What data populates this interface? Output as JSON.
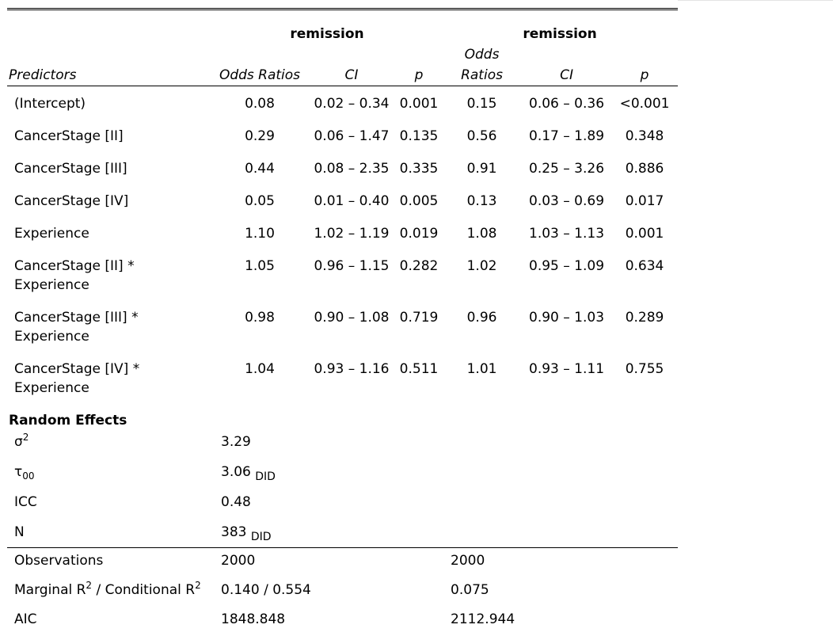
{
  "models": [
    {
      "dv": "remission"
    },
    {
      "dv": "remission"
    }
  ],
  "columns": {
    "predictors": "Predictors",
    "or": "Odds Ratios",
    "ci": "CI",
    "p": "p"
  },
  "rows": [
    {
      "label": "(Intercept)",
      "m1": {
        "or": "0.08",
        "ci": "0.02 – 0.34",
        "p": "0.001",
        "sig": true
      },
      "m2": {
        "or": "0.15",
        "ci": "0.06 – 0.36",
        "p": "<0.001",
        "sig": true
      }
    },
    {
      "label": "CancerStage [II]",
      "m1": {
        "or": "0.29",
        "ci": "0.06 – 1.47",
        "p": "0.135",
        "sig": false
      },
      "m2": {
        "or": "0.56",
        "ci": "0.17 – 1.89",
        "p": "0.348",
        "sig": false
      }
    },
    {
      "label": "CancerStage [III]",
      "m1": {
        "or": "0.44",
        "ci": "0.08 – 2.35",
        "p": "0.335",
        "sig": false
      },
      "m2": {
        "or": "0.91",
        "ci": "0.25 – 3.26",
        "p": "0.886",
        "sig": false
      }
    },
    {
      "label": "CancerStage [IV]",
      "m1": {
        "or": "0.05",
        "ci": "0.01 – 0.40",
        "p": "0.005",
        "sig": true
      },
      "m2": {
        "or": "0.13",
        "ci": "0.03 – 0.69",
        "p": "0.017",
        "sig": true
      }
    },
    {
      "label": "Experience",
      "m1": {
        "or": "1.10",
        "ci": "1.02 – 1.19",
        "p": "0.019",
        "sig": true
      },
      "m2": {
        "or": "1.08",
        "ci": "1.03 – 1.13",
        "p": "0.001",
        "sig": true
      }
    },
    {
      "label": "CancerStage [II] * Experience",
      "label_lines": [
        "CancerStage [II] *",
        "Experience"
      ],
      "m1": {
        "or": "1.05",
        "ci": "0.96 – 1.15",
        "p": "0.282",
        "sig": false
      },
      "m2": {
        "or": "1.02",
        "ci": "0.95 – 1.09",
        "p": "0.634",
        "sig": false
      }
    },
    {
      "label": "CancerStage [III] * Experience",
      "label_lines": [
        "CancerStage [III] *",
        "Experience"
      ],
      "m1": {
        "or": "0.98",
        "ci": "0.90 – 1.08",
        "p": "0.719",
        "sig": false
      },
      "m2": {
        "or": "0.96",
        "ci": "0.90 – 1.03",
        "p": "0.289",
        "sig": false
      }
    },
    {
      "label": "CancerStage [IV] * Experience",
      "label_lines": [
        "CancerStage [IV] *",
        "Experience"
      ],
      "m1": {
        "or": "1.04",
        "ci": "0.93 – 1.16",
        "p": "0.511",
        "sig": false
      },
      "m2": {
        "or": "1.01",
        "ci": "0.93 – 1.11",
        "p": "0.755",
        "sig": false
      }
    }
  ],
  "random_effects": {
    "title": "Random Effects",
    "sigma2": {
      "label_base": "σ",
      "label_sup": "2",
      "value": "3.29"
    },
    "tau00": {
      "label_base": "τ",
      "label_sub": "00",
      "value": "3.06",
      "value_sub": "DID"
    },
    "icc": {
      "label": "ICC",
      "value": "0.48"
    },
    "n": {
      "label": "N",
      "value": "383",
      "value_sub": "DID"
    }
  },
  "fit": {
    "observations": {
      "label": "Observations",
      "m1": "2000",
      "m2": "2000"
    },
    "r2": {
      "label_parts": [
        "Marginal R",
        "2",
        " / Conditional R",
        "2"
      ],
      "m1": "0.140 / 0.554",
      "m2": "0.075"
    },
    "aic": {
      "label": "AIC",
      "m1": "1848.848",
      "m2": "2112.944"
    }
  }
}
